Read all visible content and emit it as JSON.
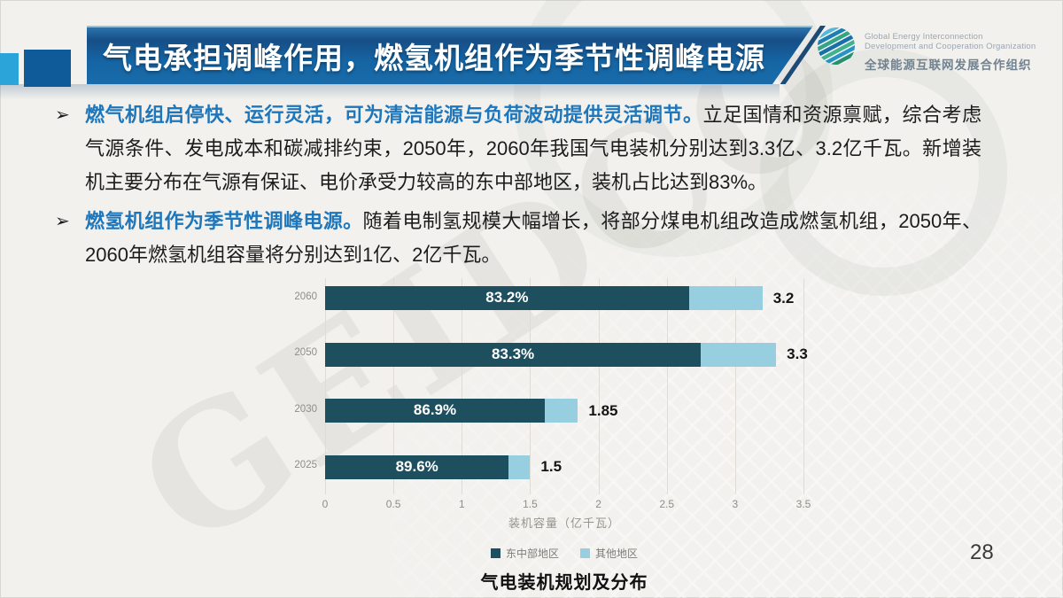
{
  "slide": {
    "page_number": "28",
    "bullet_glyph": "➢",
    "watermark": "GEIDCO",
    "header": {
      "title": "气电承担调峰作用，燃氢机组作为季节性调峰电源"
    },
    "logo": {
      "line1": "Global Energy Interconnection",
      "line2": "Development and Cooperation Organization",
      "line3": "全球能源互联网发展合作组织"
    },
    "bullets": [
      {
        "highlight": "燃气机组启停快、运行灵活，可为清洁能源与负荷波动提供灵活调节。",
        "text": "立足国情和资源禀赋，综合考虑气源条件、发电成本和碳减排约束，2050年，2060年我国气电装机分别达到3.3亿、3.2亿千瓦。新增装机主要分布在气源有保证、电价承受力较高的东中部地区，装机占比达到83%。"
      },
      {
        "highlight": "燃氢机组作为季节性调峰电源。",
        "text": "随着电制氢规模大幅增长，将部分煤电机组改造成燃氢机组，2050年、2060年燃氢机组容量将分别达到1亿、2亿千瓦。"
      }
    ]
  },
  "chart_data": {
    "type": "bar",
    "orientation": "horizontal",
    "title": "气电装机规划及分布",
    "xlabel": "装机容量（亿千瓦）",
    "categories": [
      "2060",
      "2050",
      "2030",
      "2025"
    ],
    "series": [
      {
        "name": "东中部地区",
        "color": "#1d4f5e",
        "share_labels": [
          "83.2%",
          "83.3%",
          "86.9%",
          "89.6%"
        ],
        "values": [
          2.66,
          2.75,
          1.61,
          1.34
        ]
      },
      {
        "name": "其他地区",
        "color": "#98cfe0",
        "values": [
          0.54,
          0.55,
          0.24,
          0.16
        ]
      }
    ],
    "totals": [
      3.2,
      3.3,
      1.85,
      1.5
    ],
    "total_labels": [
      "3.2",
      "3.3",
      "1.85",
      "1.5"
    ],
    "x_ticks": [
      "0",
      "0.5",
      "1",
      "1.5",
      "2",
      "2.5",
      "3",
      "3.5"
    ],
    "xlim": [
      0,
      3.5
    ],
    "grid": true,
    "legend": [
      "东中部地区",
      "其他地区"
    ],
    "legend_position": "bottom"
  },
  "colors": {
    "background": "#f2f1ee",
    "banner_blue_dark": "#174e86",
    "banner_blue": "#1565a4",
    "accent_text_blue": "#1e76bb",
    "series_dark": "#1d4f5e",
    "series_light": "#98cfe0"
  }
}
